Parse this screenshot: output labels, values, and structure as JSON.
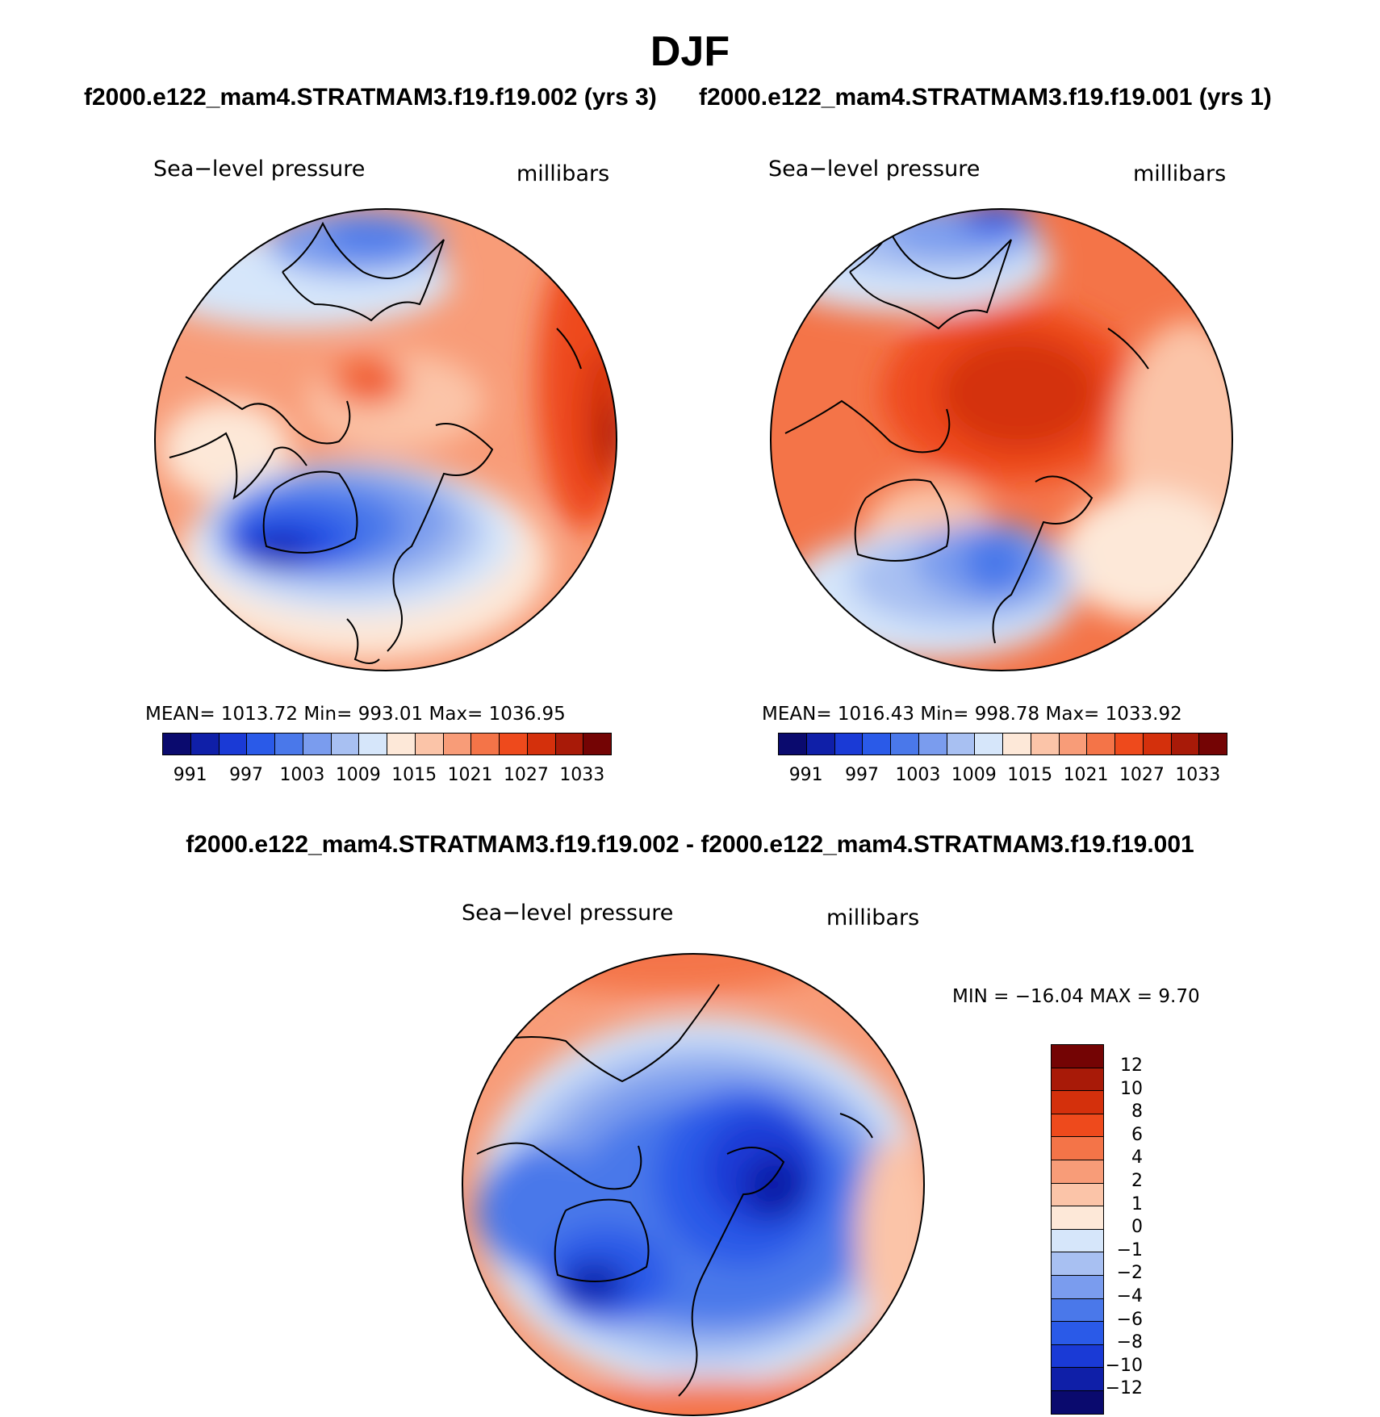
{
  "header": {
    "season": "DJF",
    "left_case": "f2000.e122_mam4.STRATMAM3.f19.f19.002 (yrs 3)",
    "right_case": "f2000.e122_mam4.STRATMAM3.f19.f19.001 (yrs 1)",
    "diff_title": "f2000.e122_mam4.STRATMAM3.f19.f19.002 - f2000.e122_mam4.STRATMAM3.f19.f19.001"
  },
  "panels": [
    {
      "variable": "Sea−level pressure",
      "units": "millibars",
      "stats": "MEAN=  1013.72   Min=  993.01   Max=  1036.95"
    },
    {
      "variable": "Sea−level pressure",
      "units": "millibars",
      "stats": "MEAN=  1016.43   Min=  998.78   Max=  1033.92"
    },
    {
      "variable": "Sea−level pressure",
      "units": "millibars",
      "stats": "MIN  =  −16.04  MAX  =     9.70"
    }
  ],
  "abs_colorbar": {
    "colors": [
      "#0a0a6e",
      "#0f1fa8",
      "#1a3ad6",
      "#2a5ae8",
      "#4a78ea",
      "#7a9cee",
      "#a8c0f2",
      "#d6e6fa",
      "#fde8d8",
      "#fbc4a8",
      "#f89c78",
      "#f47448",
      "#ee4a1c",
      "#d4300c",
      "#a81a08",
      "#740404"
    ],
    "ticks": [
      "991",
      "997",
      "1003",
      "1009",
      "1015",
      "1021",
      "1027",
      "1033"
    ]
  },
  "diff_colorbar": {
    "colors": [
      "#740404",
      "#a81a08",
      "#d4300c",
      "#ee4a1c",
      "#f47448",
      "#f89c78",
      "#fbc4a8",
      "#fde8d8",
      "#d6e6fa",
      "#a8c0f2",
      "#7a9cee",
      "#4a78ea",
      "#2a5ae8",
      "#1a3ad6",
      "#0f1fa8",
      "#0a0a6e"
    ],
    "ticks": [
      "12",
      "10",
      "8",
      "6",
      "4",
      "2",
      "1",
      "0",
      "−1",
      "−2",
      "−4",
      "−6",
      "−8",
      "−10",
      "−12"
    ]
  }
}
